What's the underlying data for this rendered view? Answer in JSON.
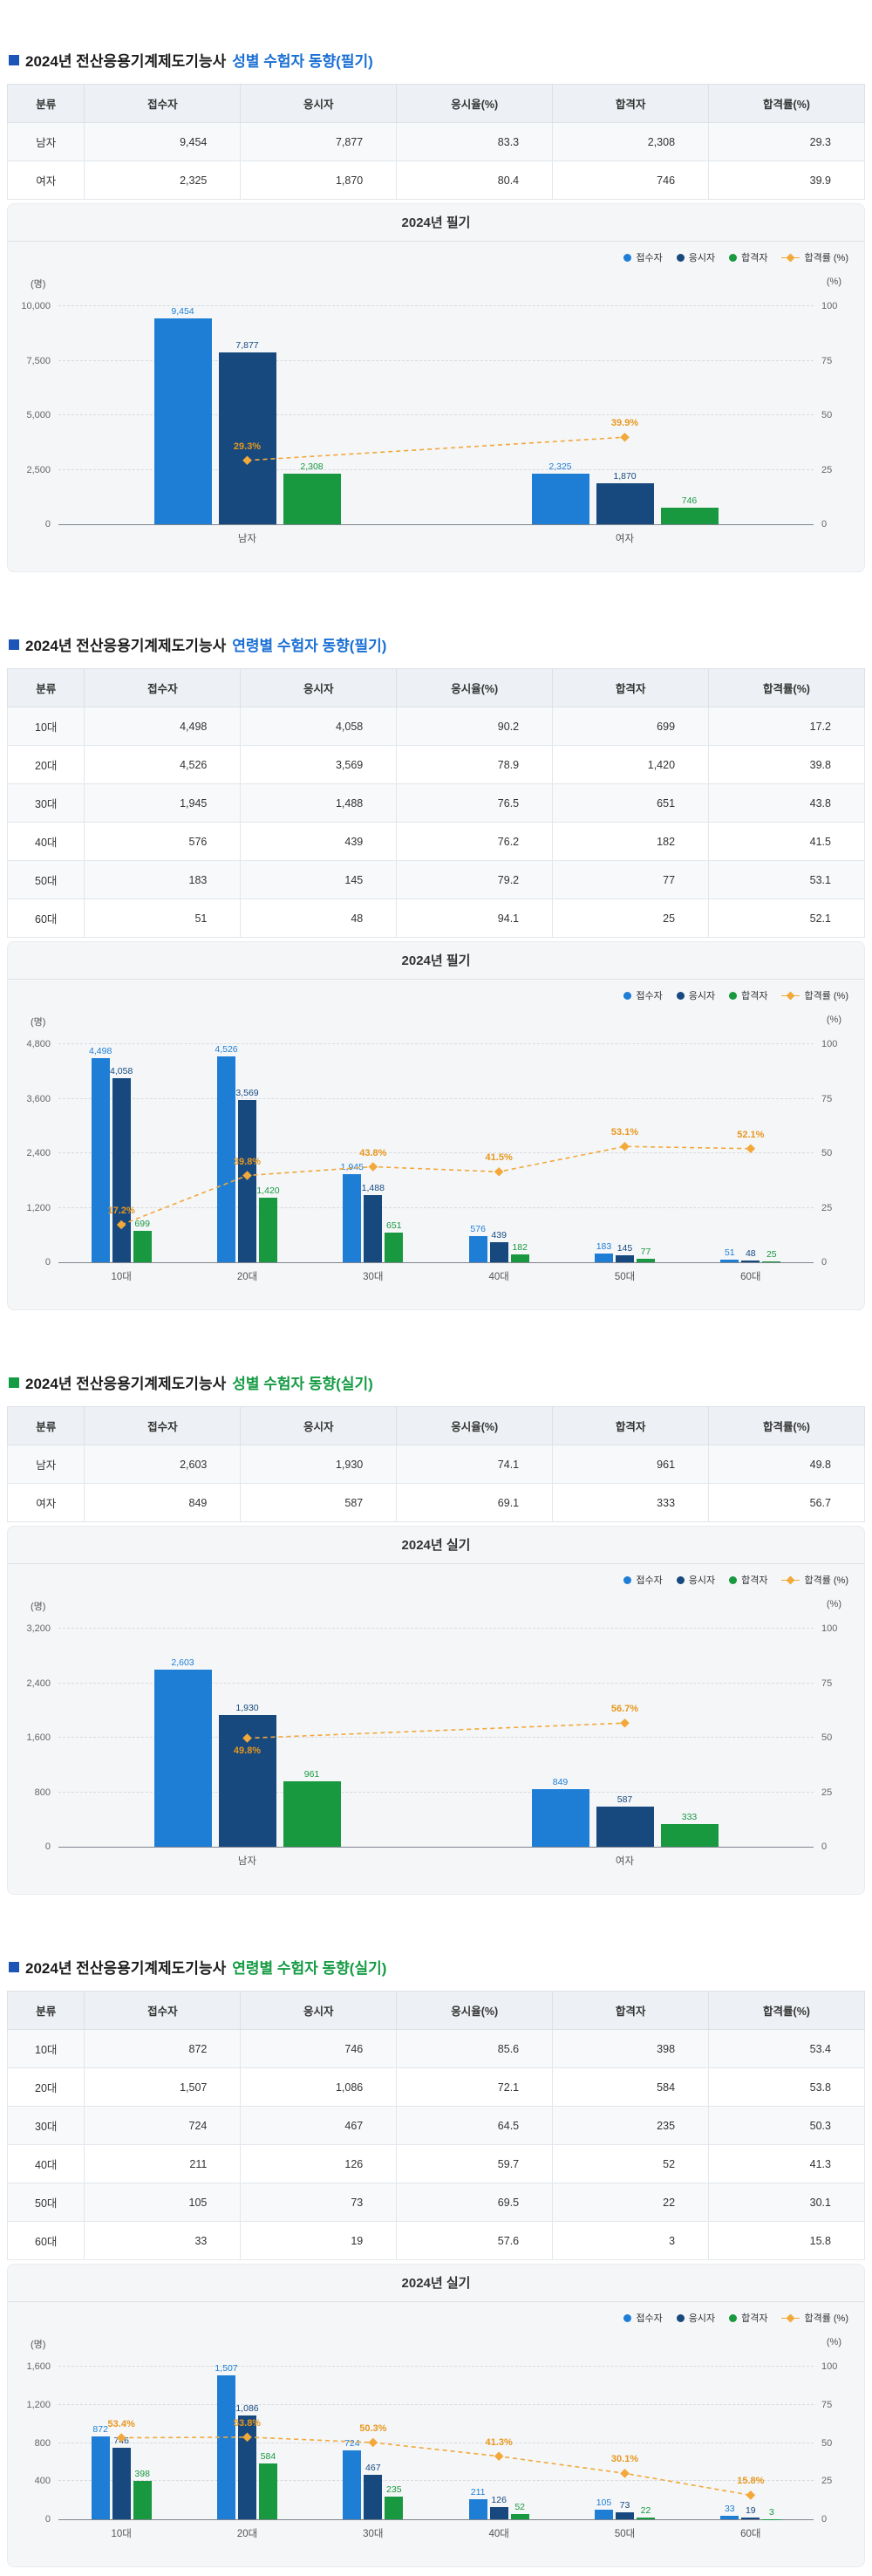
{
  "sections": [
    {
      "title": {
        "prefix": "2024년 전산응용기계제도기능사",
        "highlight": "성별 수험자 동향(필기)",
        "highlight_color": "#1a6fd4",
        "bullet_color": "#1d54b8"
      },
      "table": {
        "headers": [
          "분류",
          "접수자",
          "응시자",
          "응시율(%)",
          "합격자",
          "합격률(%)"
        ],
        "rows": [
          [
            "남자",
            "9,454",
            "7,877",
            "83.3",
            "2,308",
            "29.3"
          ],
          [
            "여자",
            "2,325",
            "1,870",
            "80.4",
            "746",
            "39.9"
          ]
        ]
      }
    },
    {
      "title": {
        "prefix": "2024년 전산응용기계제도기능사",
        "highlight": "연령별 수험자 동향(필기)",
        "highlight_color": "#1a6fd4",
        "bullet_color": "#1d54b8"
      },
      "table": {
        "headers": [
          "분류",
          "접수자",
          "응시자",
          "응시율(%)",
          "합격자",
          "합격률(%)"
        ],
        "rows": [
          [
            "10대",
            "4,498",
            "4,058",
            "90.2",
            "699",
            "17.2"
          ],
          [
            "20대",
            "4,526",
            "3,569",
            "78.9",
            "1,420",
            "39.8"
          ],
          [
            "30대",
            "1,945",
            "1,488",
            "76.5",
            "651",
            "43.8"
          ],
          [
            "40대",
            "576",
            "439",
            "76.2",
            "182",
            "41.5"
          ],
          [
            "50대",
            "183",
            "145",
            "79.2",
            "77",
            "53.1"
          ],
          [
            "60대",
            "51",
            "48",
            "94.1",
            "25",
            "52.1"
          ]
        ]
      }
    },
    {
      "title": {
        "prefix": "2024년 전산응용기계제도기능사",
        "highlight": "성별 수험자 동향(실기)",
        "highlight_color": "#149b43",
        "bullet_color": "#149b43"
      },
      "table": {
        "headers": [
          "분류",
          "접수자",
          "응시자",
          "응시율(%)",
          "합격자",
          "합격률(%)"
        ],
        "rows": [
          [
            "남자",
            "2,603",
            "1,930",
            "74.1",
            "961",
            "49.8"
          ],
          [
            "여자",
            "849",
            "587",
            "69.1",
            "333",
            "56.7"
          ]
        ]
      }
    },
    {
      "title": {
        "prefix": "2024년 전산응용기계제도기능사",
        "highlight": "연령별 수험자 동향(실기)",
        "highlight_color": "#149b43",
        "bullet_color": "#1d54b8"
      },
      "table": {
        "headers": [
          "분류",
          "접수자",
          "응시자",
          "응시율(%)",
          "합격자",
          "합격률(%)"
        ],
        "rows": [
          [
            "10대",
            "872",
            "746",
            "85.6",
            "398",
            "53.4"
          ],
          [
            "20대",
            "1,507",
            "1,086",
            "72.1",
            "584",
            "53.8"
          ],
          [
            "30대",
            "724",
            "467",
            "64.5",
            "235",
            "50.3"
          ],
          [
            "40대",
            "211",
            "126",
            "59.7",
            "52",
            "41.3"
          ],
          [
            "50대",
            "105",
            "73",
            "69.5",
            "22",
            "30.1"
          ],
          [
            "60대",
            "33",
            "19",
            "57.6",
            "3",
            "15.8"
          ]
        ]
      }
    }
  ],
  "chart_data": [
    {
      "type": "bar+line",
      "title": "2024년 필기",
      "unit_left": "(명)",
      "unit_right": "(%)",
      "categories": [
        "남자",
        "여자"
      ],
      "series": [
        {
          "key": "applicants",
          "name": "접수자",
          "color": "#1e7ed6",
          "values": [
            9454,
            2325
          ]
        },
        {
          "key": "examinees",
          "name": "응시자",
          "color": "#17497f",
          "values": [
            7877,
            1870
          ]
        },
        {
          "key": "passers",
          "name": "합격자",
          "color": "#18993f",
          "values": [
            2308,
            746
          ]
        }
      ],
      "line_series": {
        "key": "pass-rate",
        "name": "합격률 (%)",
        "color": "#f3a83a",
        "label_color": "#e8971c",
        "values": [
          29.3,
          39.9
        ],
        "label_below": [
          false,
          false
        ]
      },
      "ylim": [
        0,
        10000
      ],
      "yticks": [
        0,
        2500,
        5000,
        7500,
        10000
      ],
      "y2lim": [
        0,
        100
      ],
      "y2ticks": [
        0,
        25,
        50,
        75,
        100
      ],
      "grid": "dashed-horizontal",
      "legend_position": "top-right"
    },
    {
      "type": "bar+line",
      "title": "2024년 필기",
      "unit_left": "(명)",
      "unit_right": "(%)",
      "categories": [
        "10대",
        "20대",
        "30대",
        "40대",
        "50대",
        "60대"
      ],
      "series": [
        {
          "key": "applicants",
          "name": "접수자",
          "color": "#1e7ed6",
          "values": [
            4498,
            4526,
            1945,
            576,
            183,
            51
          ]
        },
        {
          "key": "examinees",
          "name": "응시자",
          "color": "#17497f",
          "values": [
            4058,
            3569,
            1488,
            439,
            145,
            48
          ]
        },
        {
          "key": "passers",
          "name": "합격자",
          "color": "#18993f",
          "values": [
            699,
            1420,
            651,
            182,
            77,
            25
          ]
        }
      ],
      "line_series": {
        "key": "pass-rate",
        "name": "합격률 (%)",
        "color": "#f3a83a",
        "label_color": "#e8971c",
        "values": [
          17.2,
          39.8,
          43.8,
          41.5,
          53.1,
          52.1
        ],
        "label_below": [
          false,
          false,
          false,
          false,
          false,
          false
        ]
      },
      "ylim": [
        0,
        4800
      ],
      "yticks": [
        0,
        1200,
        2400,
        3600,
        4800
      ],
      "y2lim": [
        0,
        100
      ],
      "y2ticks": [
        0,
        25,
        50,
        75,
        100
      ],
      "grid": "dashed-horizontal",
      "legend_position": "top-right"
    },
    {
      "type": "bar+line",
      "title": "2024년 실기",
      "unit_left": "(명)",
      "unit_right": "(%)",
      "categories": [
        "남자",
        "여자"
      ],
      "series": [
        {
          "key": "applicants",
          "name": "접수자",
          "color": "#1e7ed6",
          "values": [
            2603,
            849
          ]
        },
        {
          "key": "examinees",
          "name": "응시자",
          "color": "#17497f",
          "values": [
            1930,
            587
          ]
        },
        {
          "key": "passers",
          "name": "합격자",
          "color": "#18993f",
          "values": [
            961,
            333
          ]
        }
      ],
      "line_series": {
        "key": "pass-rate",
        "name": "합격률 (%)",
        "color": "#f3a83a",
        "label_color": "#e8971c",
        "values": [
          49.8,
          56.7
        ],
        "label_below": [
          true,
          false
        ]
      },
      "ylim": [
        0,
        3200
      ],
      "yticks": [
        0,
        800,
        1600,
        2400,
        3200
      ],
      "y2lim": [
        0,
        100
      ],
      "y2ticks": [
        0,
        25,
        50,
        75,
        100
      ],
      "grid": "dashed-horizontal",
      "legend_position": "top-right"
    },
    {
      "type": "bar+line",
      "title": "2024년 실기",
      "unit_left": "(명)",
      "unit_right": "(%)",
      "categories": [
        "10대",
        "20대",
        "30대",
        "40대",
        "50대",
        "60대"
      ],
      "series": [
        {
          "key": "applicants",
          "name": "접수자",
          "color": "#1e7ed6",
          "values": [
            872,
            1507,
            724,
            211,
            105,
            33
          ]
        },
        {
          "key": "examinees",
          "name": "응시자",
          "color": "#17497f",
          "values": [
            746,
            1086,
            467,
            126,
            73,
            19
          ]
        },
        {
          "key": "passers",
          "name": "합격자",
          "color": "#18993f",
          "values": [
            398,
            584,
            235,
            52,
            22,
            3
          ]
        }
      ],
      "line_series": {
        "key": "pass-rate",
        "name": "합격률 (%)",
        "color": "#f3a83a",
        "label_color": "#e8971c",
        "values": [
          53.4,
          53.8,
          50.3,
          41.3,
          30.1,
          15.8
        ],
        "label_below": [
          false,
          false,
          false,
          false,
          false,
          false
        ]
      },
      "ylim": [
        0,
        1600
      ],
      "yticks": [
        0,
        400,
        800,
        1200,
        1600
      ],
      "y2lim": [
        0,
        100
      ],
      "y2ticks": [
        0,
        25,
        50,
        75,
        100
      ],
      "grid": "dashed-horizontal",
      "legend_position": "top-right"
    }
  ]
}
